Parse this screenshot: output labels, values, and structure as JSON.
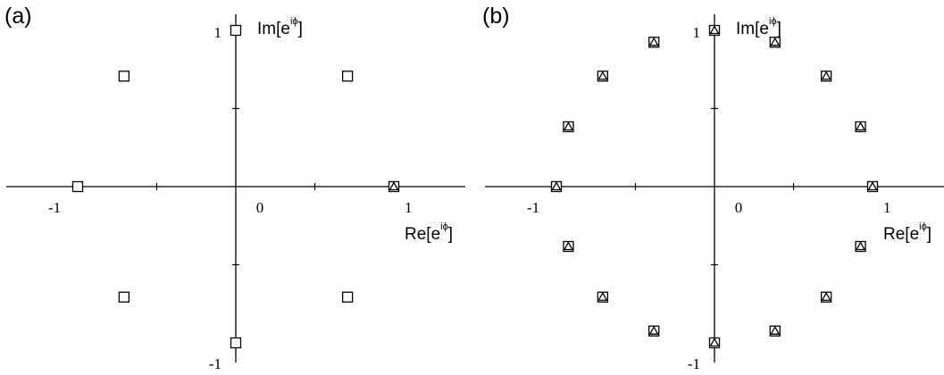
{
  "chart_data": [
    {
      "type": "scatter",
      "panel_label": "(a)",
      "xlabel": "Re[e",
      "xlabel_sup": "iϕ",
      "xlabel_close": "]",
      "ylabel": "Im[e",
      "ylabel_sup": "iϕ",
      "ylabel_close": "]",
      "xlim": [
        -1.45,
        1.45
      ],
      "ylim": [
        -1.12,
        1.12
      ],
      "x_tick_labels": [
        {
          "value": -1,
          "label": "-1"
        },
        {
          "value": 0,
          "label": "0"
        },
        {
          "value": 1,
          "label": "1"
        }
      ],
      "y_tick_labels": [
        {
          "value": 1,
          "label": "1"
        },
        {
          "value": -1,
          "label": "-1"
        }
      ],
      "x_minor_ticks": [
        -0.5,
        0.5
      ],
      "y_minor_ticks": [
        -0.5,
        0.5
      ],
      "series": [
        {
          "marker": "square",
          "points": [
            [
              1,
              0
            ],
            [
              0.707,
              0.707
            ],
            [
              0,
              1
            ],
            [
              -0.707,
              0.707
            ],
            [
              -1,
              0
            ],
            [
              -0.707,
              -0.707
            ],
            [
              0,
              -1
            ],
            [
              0.707,
              -0.707
            ]
          ]
        },
        {
          "marker": "triangle",
          "points": [
            [
              1,
              0
            ]
          ]
        }
      ]
    },
    {
      "type": "scatter",
      "panel_label": "(b)",
      "xlabel": "Re[e",
      "xlabel_sup": "iϕ",
      "xlabel_close": "]",
      "ylabel": "Im[e",
      "ylabel_sup": "iϕ",
      "ylabel_close": "]",
      "xlim": [
        -1.45,
        1.45
      ],
      "ylim": [
        -1.12,
        1.12
      ],
      "x_tick_labels": [
        {
          "value": -1,
          "label": "-1"
        },
        {
          "value": 0,
          "label": "0"
        },
        {
          "value": 1,
          "label": "1"
        }
      ],
      "y_tick_labels": [
        {
          "value": 1,
          "label": "1"
        },
        {
          "value": -1,
          "label": "-1"
        }
      ],
      "x_minor_ticks": [
        -0.5,
        0.5
      ],
      "y_minor_ticks": [
        -0.5,
        0.5
      ],
      "series": [
        {
          "marker": "square",
          "points": [
            [
              1,
              0
            ],
            [
              0.924,
              0.383
            ],
            [
              0.707,
              0.707
            ],
            [
              0.383,
              0.924
            ],
            [
              0,
              1
            ],
            [
              -0.383,
              0.924
            ],
            [
              -0.707,
              0.707
            ],
            [
              -0.924,
              0.383
            ],
            [
              -1,
              0
            ],
            [
              -0.924,
              -0.383
            ],
            [
              -0.707,
              -0.707
            ],
            [
              -0.383,
              -0.924
            ],
            [
              0,
              -1
            ],
            [
              0.383,
              -0.924
            ],
            [
              0.707,
              -0.707
            ],
            [
              0.924,
              -0.383
            ]
          ]
        },
        {
          "marker": "triangle",
          "points": [
            [
              1,
              0
            ],
            [
              0.924,
              0.383
            ],
            [
              0.707,
              0.707
            ],
            [
              0.383,
              0.924
            ],
            [
              0,
              1
            ],
            [
              -0.383,
              0.924
            ],
            [
              -0.707,
              0.707
            ],
            [
              -0.924,
              0.383
            ],
            [
              -1,
              0
            ],
            [
              -0.924,
              -0.383
            ],
            [
              -0.707,
              -0.707
            ],
            [
              -0.383,
              -0.924
            ],
            [
              0,
              -1
            ],
            [
              0.383,
              -0.924
            ],
            [
              0.707,
              -0.707
            ],
            [
              0.924,
              -0.383
            ]
          ]
        }
      ]
    }
  ]
}
